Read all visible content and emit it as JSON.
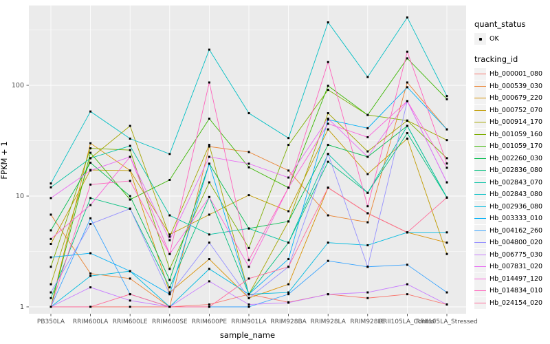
{
  "figure": {
    "background": "#FFFFFF",
    "panel_background": "#EBEBEB",
    "grid_color": "#FFFFFF",
    "tick_color": "#333333",
    "tick_label_color": "#4D4D4D",
    "point_color": "#000000"
  },
  "axes": {
    "x_title": "sample_name",
    "y_title": "FPKM + 1"
  },
  "legend": {
    "quant_status_title": "quant_status",
    "quant_status_items": [
      {
        "label": "OK"
      }
    ],
    "tracking_id_title": "tracking_id"
  },
  "chart_data": {
    "type": "line",
    "title": "",
    "xlabel": "sample_name",
    "ylabel": "FPKM + 1",
    "y_scale": "log10",
    "y_ticks": [
      1,
      10,
      100
    ],
    "ylim": [
      1,
      520
    ],
    "grid": true,
    "legend_position": "right",
    "point_marker": "small black square (quant_status = OK)",
    "categories": [
      "PB350LA",
      "RRIM600LA",
      "RRIM600LE",
      "RRIM600SE",
      "RRIM600PE",
      "RRIM901LA",
      "RRIM928BA",
      "RRIM928LA",
      "RRIM928LE",
      "RRII105LA_Control",
      "RRII105LA_Stressed"
    ],
    "series": [
      {
        "name": "Hb_000001_080",
        "color": "#F8766D",
        "values": [
          1.0,
          1.0,
          1.0,
          1.0,
          1.05,
          1.3,
          1.1,
          1.3,
          1.2,
          1.3,
          1.05
        ]
      },
      {
        "name": "Hb_000539_030",
        "color": "#EA8331",
        "values": [
          6.8,
          2.0,
          1.8,
          1.0,
          28,
          25,
          17,
          6.7,
          5.8,
          106,
          40
        ]
      },
      {
        "name": "Hb_000679_220",
        "color": "#D89000",
        "values": [
          1.0,
          30,
          17,
          1.35,
          2.7,
          1.2,
          1.6,
          11.9,
          7.0,
          4.7,
          3.8
        ]
      },
      {
        "name": "Hb_000752_070",
        "color": "#C09B00",
        "values": [
          3.7,
          17.2,
          17,
          4.5,
          6.8,
          10.2,
          7.3,
          40,
          15.8,
          33,
          3.0
        ]
      },
      {
        "name": "Hb_000914_170",
        "color": "#A3A500",
        "values": [
          1.6,
          22,
          43,
          4.3,
          29,
          1.3,
          5.9,
          56,
          25.3,
          48,
          32
        ]
      },
      {
        "name": "Hb_001059_160",
        "color": "#7CAE00",
        "values": [
          2.3,
          27,
          26,
          2.2,
          13.3,
          3.4,
          29,
          91,
          54,
          48,
          22
        ]
      },
      {
        "name": "Hb_001059_170",
        "color": "#39B600",
        "values": [
          1.0,
          24.6,
          9.3,
          14,
          50,
          18.2,
          11.9,
          99,
          54,
          175,
          75
        ]
      },
      {
        "name": "Hb_002260_030",
        "color": "#00BB4E",
        "values": [
          4.9,
          20,
          10,
          1.75,
          19.6,
          5.1,
          5.9,
          29,
          22.6,
          43,
          9.7
        ]
      },
      {
        "name": "Hb_002836_080",
        "color": "#00BF7D",
        "values": [
          1.2,
          9.6,
          7.7,
          1.5,
          9.8,
          1.3,
          3.8,
          20.4,
          10.7,
          37,
          9.7
        ]
      },
      {
        "name": "Hb_002843_070",
        "color": "#00C1A3",
        "values": [
          12,
          22,
          28.4,
          6.7,
          4.5,
          5.1,
          3.8,
          24,
          10.7,
          43,
          9.7
        ]
      },
      {
        "name": "Hb_002843_080",
        "color": "#00BFC4",
        "values": [
          13,
          58,
          33,
          24,
          210,
          56,
          33.4,
          370,
          119,
          410,
          80
        ]
      },
      {
        "name": "Hb_002936_080",
        "color": "#00BAE0",
        "values": [
          1.0,
          1.9,
          2.1,
          1.0,
          2.2,
          1.3,
          1.35,
          3.8,
          3.6,
          4.7,
          4.7
        ]
      },
      {
        "name": "Hb_003333_010",
        "color": "#00B0F6",
        "values": [
          2.8,
          3.05,
          2.1,
          1.3,
          19.6,
          1.3,
          2.7,
          49,
          41,
          96,
          40
        ]
      },
      {
        "name": "Hb_004162_260",
        "color": "#35A2FF",
        "values": [
          1.0,
          6.3,
          1.3,
          1.0,
          1.0,
          1.0,
          1.3,
          2.6,
          2.3,
          2.4,
          1.35
        ]
      },
      {
        "name": "Hb_004800_020",
        "color": "#9590FF",
        "values": [
          1.35,
          5.6,
          7.7,
          1.3,
          3.8,
          1.2,
          2.3,
          24,
          2.3,
          72,
          13.3
        ]
      },
      {
        "name": "Hb_006775_030",
        "color": "#C77CFF",
        "values": [
          1.0,
          1.5,
          1.14,
          1.0,
          1.7,
          1.05,
          1.09,
          1.3,
          1.35,
          1.6,
          1.05
        ]
      },
      {
        "name": "Hb_007831_020",
        "color": "#E76BF3",
        "values": [
          9.6,
          17,
          22.6,
          4.0,
          22.6,
          19.6,
          14.7,
          50,
          22.6,
          72,
          13.3
        ]
      },
      {
        "name": "Hb_014497_120",
        "color": "#FA62DB",
        "values": [
          4.1,
          8.3,
          22.6,
          3.0,
          9.8,
          2.3,
          11.9,
          45,
          34,
          72,
          18
        ]
      },
      {
        "name": "Hb_014834_010",
        "color": "#FF62BC",
        "values": [
          1.0,
          12.7,
          13.7,
          3.0,
          106,
          2.65,
          11.9,
          162,
          8.1,
          201,
          19.7
        ]
      },
      {
        "name": "Hb_024154_020",
        "color": "#FF6A98",
        "values": [
          1.0,
          1.0,
          1.3,
          1.0,
          1.0,
          1.8,
          2.3,
          11.9,
          7.0,
          4.7,
          9.7
        ]
      }
    ]
  }
}
